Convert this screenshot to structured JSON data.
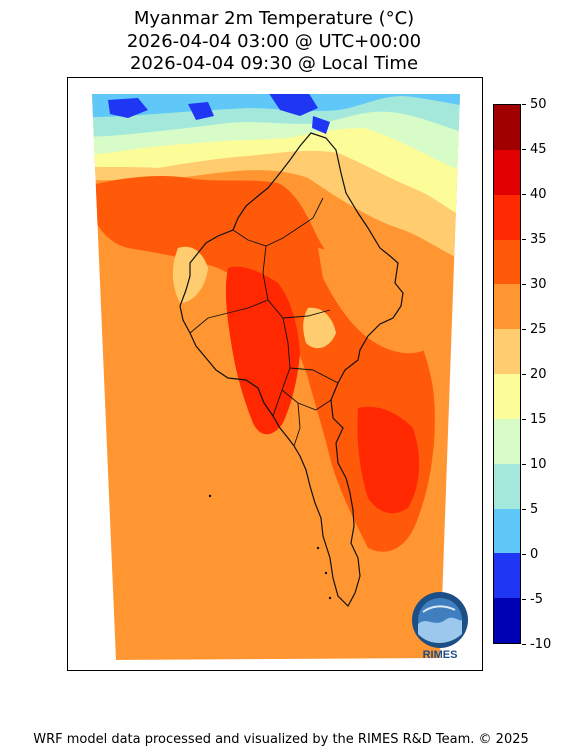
{
  "header": {
    "title": "Myanmar 2m Temperature (°C)",
    "utc_time": "2026-04-04 03:00 @ UTC+00:00",
    "local_time": "2026-04-04 09:30 @ Local Time"
  },
  "colorbar": {
    "ticks": [
      "50",
      "45",
      "40",
      "35",
      "30",
      "25",
      "20",
      "15",
      "10",
      "5",
      "0",
      "-5",
      "-10"
    ],
    "bins": [
      {
        "from": -10,
        "to": -5,
        "color": "#0000b4"
      },
      {
        "from": -5,
        "to": 0,
        "color": "#1f36f4"
      },
      {
        "from": 0,
        "to": 5,
        "color": "#60c8f8"
      },
      {
        "from": 5,
        "to": 10,
        "color": "#a4e8dc"
      },
      {
        "from": 10,
        "to": 15,
        "color": "#d8fcc8"
      },
      {
        "from": 15,
        "to": 20,
        "color": "#fcfc98"
      },
      {
        "from": 20,
        "to": 25,
        "color": "#ffcc70"
      },
      {
        "from": 25,
        "to": 30,
        "color": "#ff9632"
      },
      {
        "from": 30,
        "to": 35,
        "color": "#ff5a0a"
      },
      {
        "from": 35,
        "to": 40,
        "color": "#ff2800"
      },
      {
        "from": 40,
        "to": 45,
        "color": "#e10000"
      },
      {
        "from": 45,
        "to": 50,
        "color": "#a00000"
      }
    ]
  },
  "logo": {
    "text": "RIMES"
  },
  "footer": {
    "credit": "WRF model data processed and visualized by the RIMES R&D Team. © 2025"
  }
}
